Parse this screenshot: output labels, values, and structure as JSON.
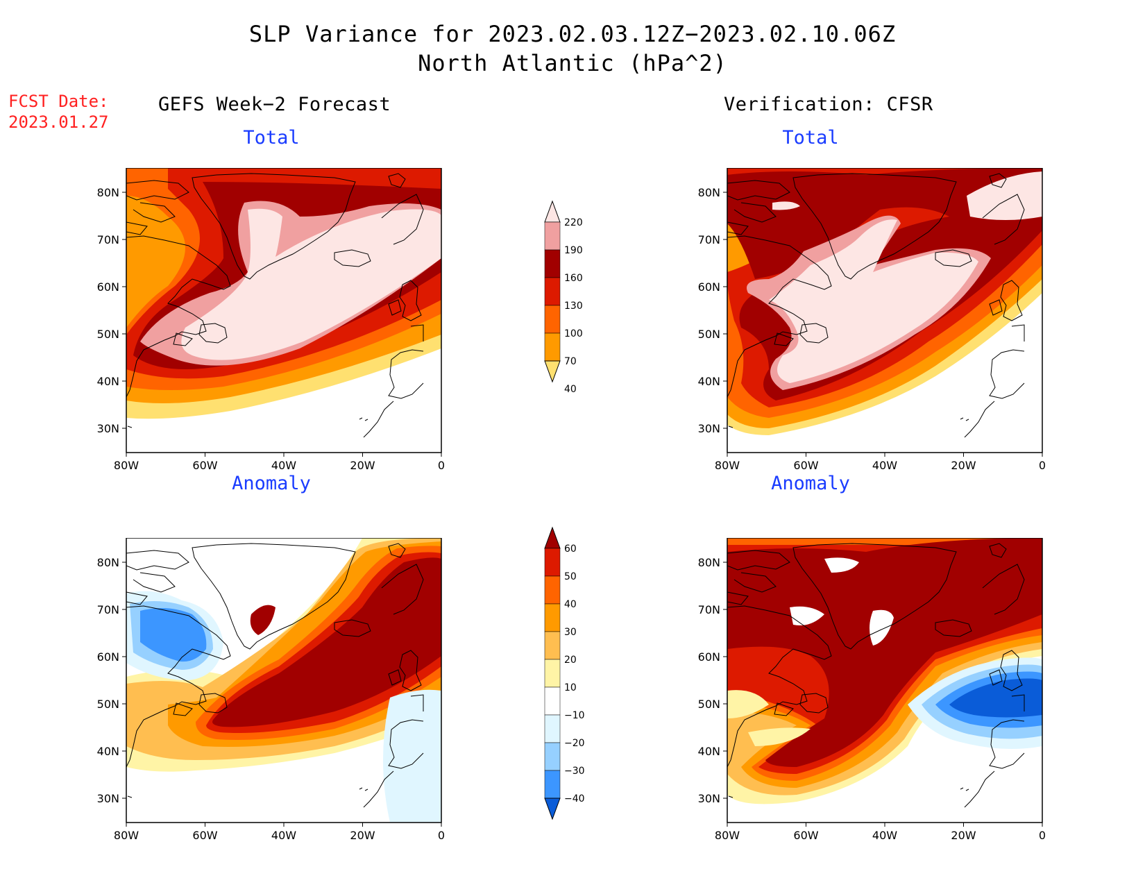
{
  "header": {
    "title": "SLP Variance for 2023.02.03.12Z−2023.02.10.06Z",
    "subtitle": "North Atlantic (hPa^2)"
  },
  "forecast_date": {
    "label": "FCST Date:",
    "value": "2023.01.27"
  },
  "columns": {
    "left": "GEFS Week−2 Forecast",
    "right": "Verification: CFSR"
  },
  "panels": [
    {
      "id": "gefs-total",
      "subtitle": "Total"
    },
    {
      "id": "cfsr-total",
      "subtitle": "Total"
    },
    {
      "id": "gefs-anomaly",
      "subtitle": "Anomaly"
    },
    {
      "id": "cfsr-anomaly",
      "subtitle": "Anomaly"
    }
  ],
  "map_axes": {
    "lon_ticks": [
      "80W",
      "60W",
      "40W",
      "20W",
      "0"
    ],
    "lat_ticks": [
      "80N",
      "70N",
      "60N",
      "50N",
      "40N",
      "30N"
    ]
  },
  "colorbars": {
    "total": {
      "labels": [
        "220",
        "190",
        "160",
        "130",
        "100",
        "70",
        "40"
      ],
      "colors": [
        "#fde6e4",
        "#f0a0a0",
        "#a10000",
        "#dd1a00",
        "#ff6400",
        "#ff9a00",
        "#ffe070"
      ]
    },
    "anomaly": {
      "labels": [
        "60",
        "50",
        "40",
        "30",
        "20",
        "10",
        "−10",
        "−20",
        "−30",
        "−40"
      ],
      "colors": [
        "#a10000",
        "#dd1a00",
        "#ff6400",
        "#ff9a00",
        "#ffbe50",
        "#fff4a6",
        "#ffffff",
        "#e0f6ff",
        "#96d0ff",
        "#3c96ff",
        "#0a5cd8"
      ]
    }
  }
}
